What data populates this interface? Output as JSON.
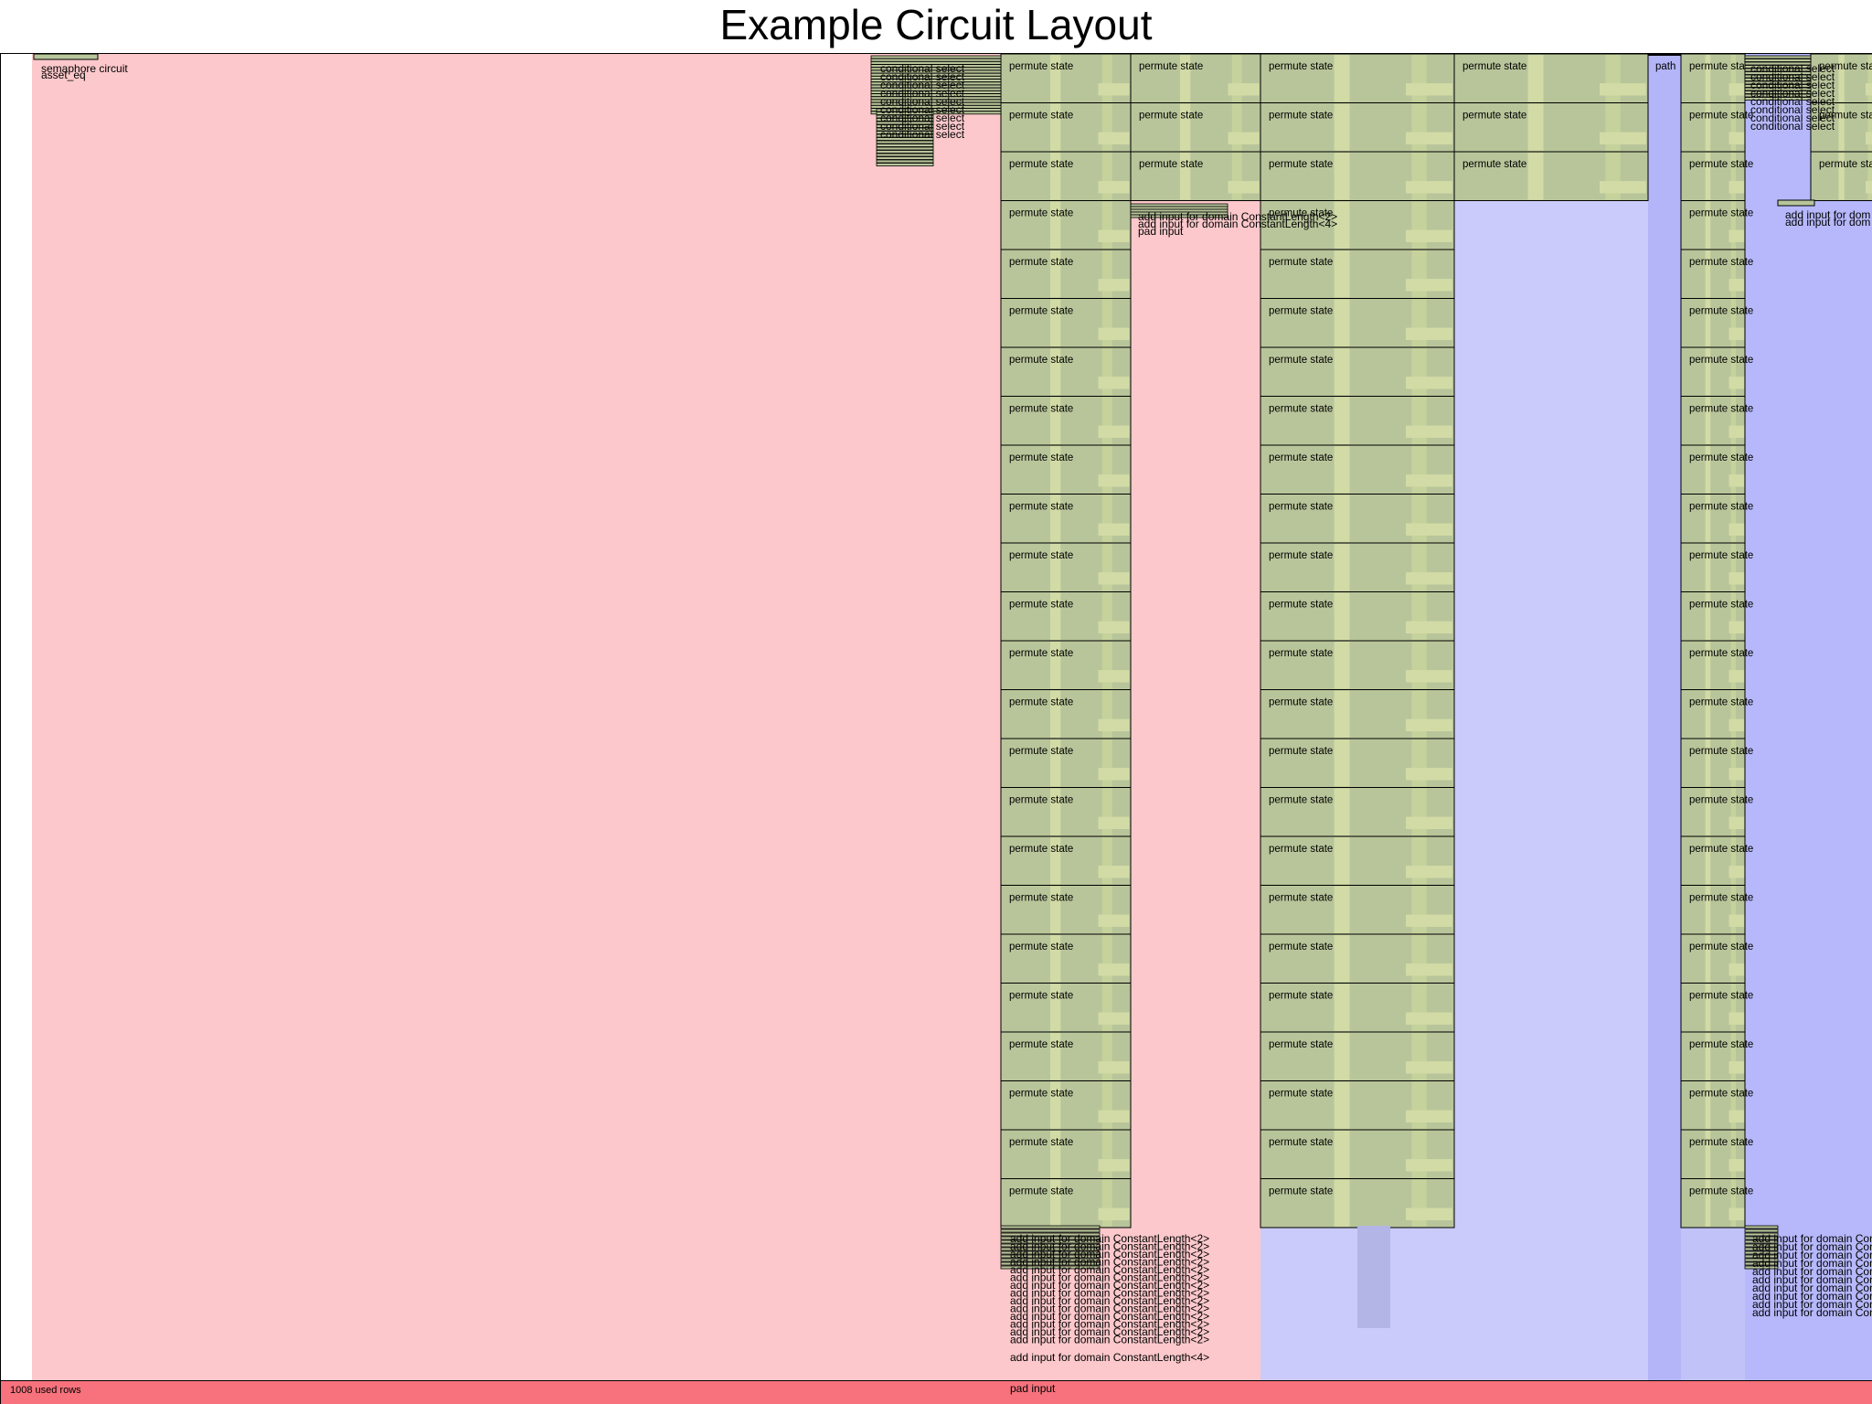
{
  "title": "Example Circuit Layout",
  "legend": {
    "used_rows": "1008 used rows"
  },
  "colors": {
    "advice_region": "#fcc8cb",
    "fixed_region": "#cacbfb",
    "selector_region": "#b6b8fb",
    "region_box": "#b8c59a",
    "region_box_stripe": "#d2dba6",
    "used_rows_bar": "#f7727c"
  },
  "regions": {
    "permute_state": "permute state",
    "path": "path",
    "semaphore_circuit": "semaphore circuit",
    "asset_eq": "asset_eq",
    "add_input": "add input for domain ConstantLength<2>",
    "add_input_4": "add input for domain ConstantLength<4>",
    "add_input_short": "add input for dom",
    "pad": "pad input",
    "conditional_select": "conditional select",
    "permute_state_short": "permute sta"
  }
}
